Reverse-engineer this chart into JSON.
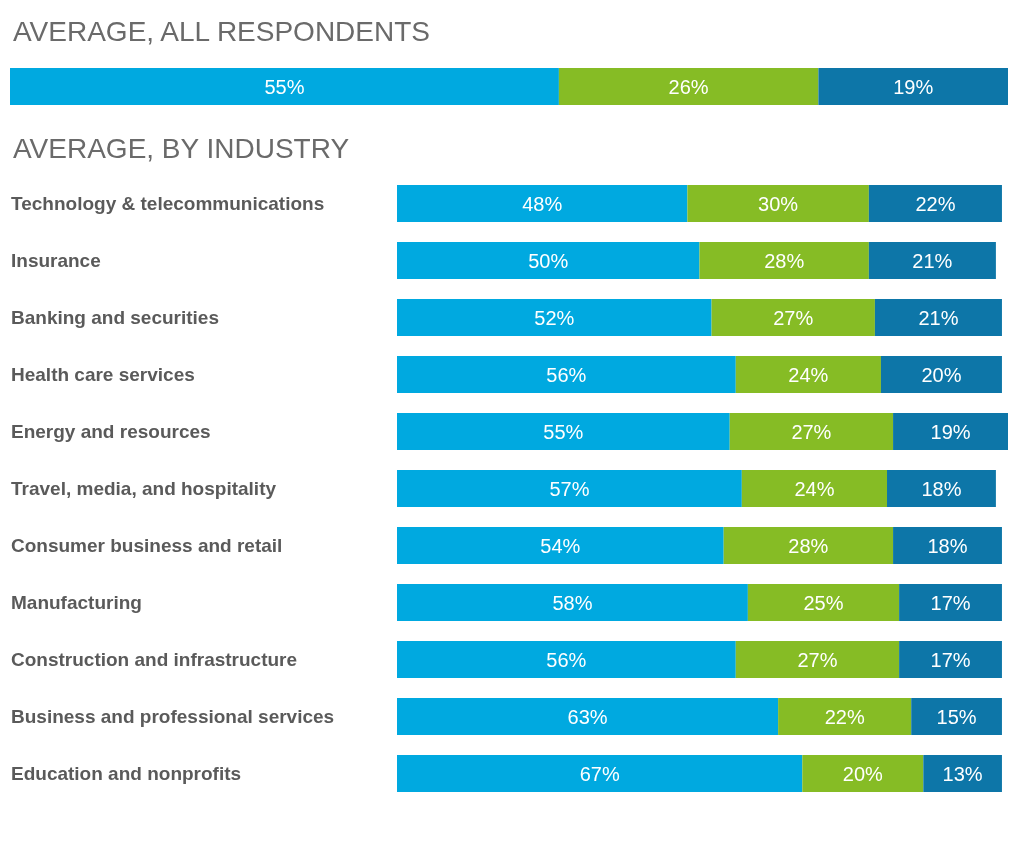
{
  "chart_data": [
    {
      "type": "bar",
      "title": "AVERAGE, ALL RESPONDENTS",
      "orientation": "horizontal",
      "stacked": true,
      "categories": [
        null
      ],
      "series": [
        {
          "color": "#00a9e0",
          "values": [
            55
          ],
          "value_labels": [
            "55%"
          ]
        },
        {
          "color": "#86bc25",
          "values": [
            26
          ],
          "value_labels": [
            "26%"
          ]
        },
        {
          "color": "#0d76a8",
          "values": [
            19
          ],
          "value_labels": [
            "19%"
          ]
        }
      ]
    },
    {
      "type": "bar",
      "title": "AVERAGE, BY INDUSTRY",
      "orientation": "horizontal",
      "stacked": true,
      "categories": [
        "Technology & telecommunications",
        "Insurance",
        "Banking and securities",
        "Health care services",
        "Energy and resources",
        "Travel, media, and hospitality",
        "Consumer business and retail",
        "Manufacturing",
        "Construction and infrastructure",
        "Business and professional services",
        "Education and nonprofits"
      ],
      "series": [
        {
          "color": "#00a9e0",
          "values": [
            48,
            50,
            52,
            56,
            55,
            57,
            54,
            58,
            56,
            63,
            67
          ],
          "value_labels": [
            "48%",
            "50%",
            "52%",
            "56%",
            "55%",
            "57%",
            "54%",
            "58%",
            "56%",
            "63%",
            "67%"
          ]
        },
        {
          "color": "#86bc25",
          "values": [
            30,
            28,
            27,
            24,
            27,
            24,
            28,
            25,
            27,
            22,
            20
          ],
          "value_labels": [
            "30%",
            "28%",
            "27%",
            "24%",
            "27%",
            "24%",
            "28%",
            "25%",
            "27%",
            "22%",
            "20%"
          ]
        },
        {
          "color": "#0d76a8",
          "values": [
            22,
            21,
            21,
            20,
            19,
            18,
            18,
            17,
            17,
            15,
            13
          ],
          "value_labels": [
            "22%",
            "21%",
            "21%",
            "20%",
            "19%",
            "18%",
            "18%",
            "17%",
            "17%",
            "15%",
            "13%"
          ]
        }
      ]
    }
  ]
}
